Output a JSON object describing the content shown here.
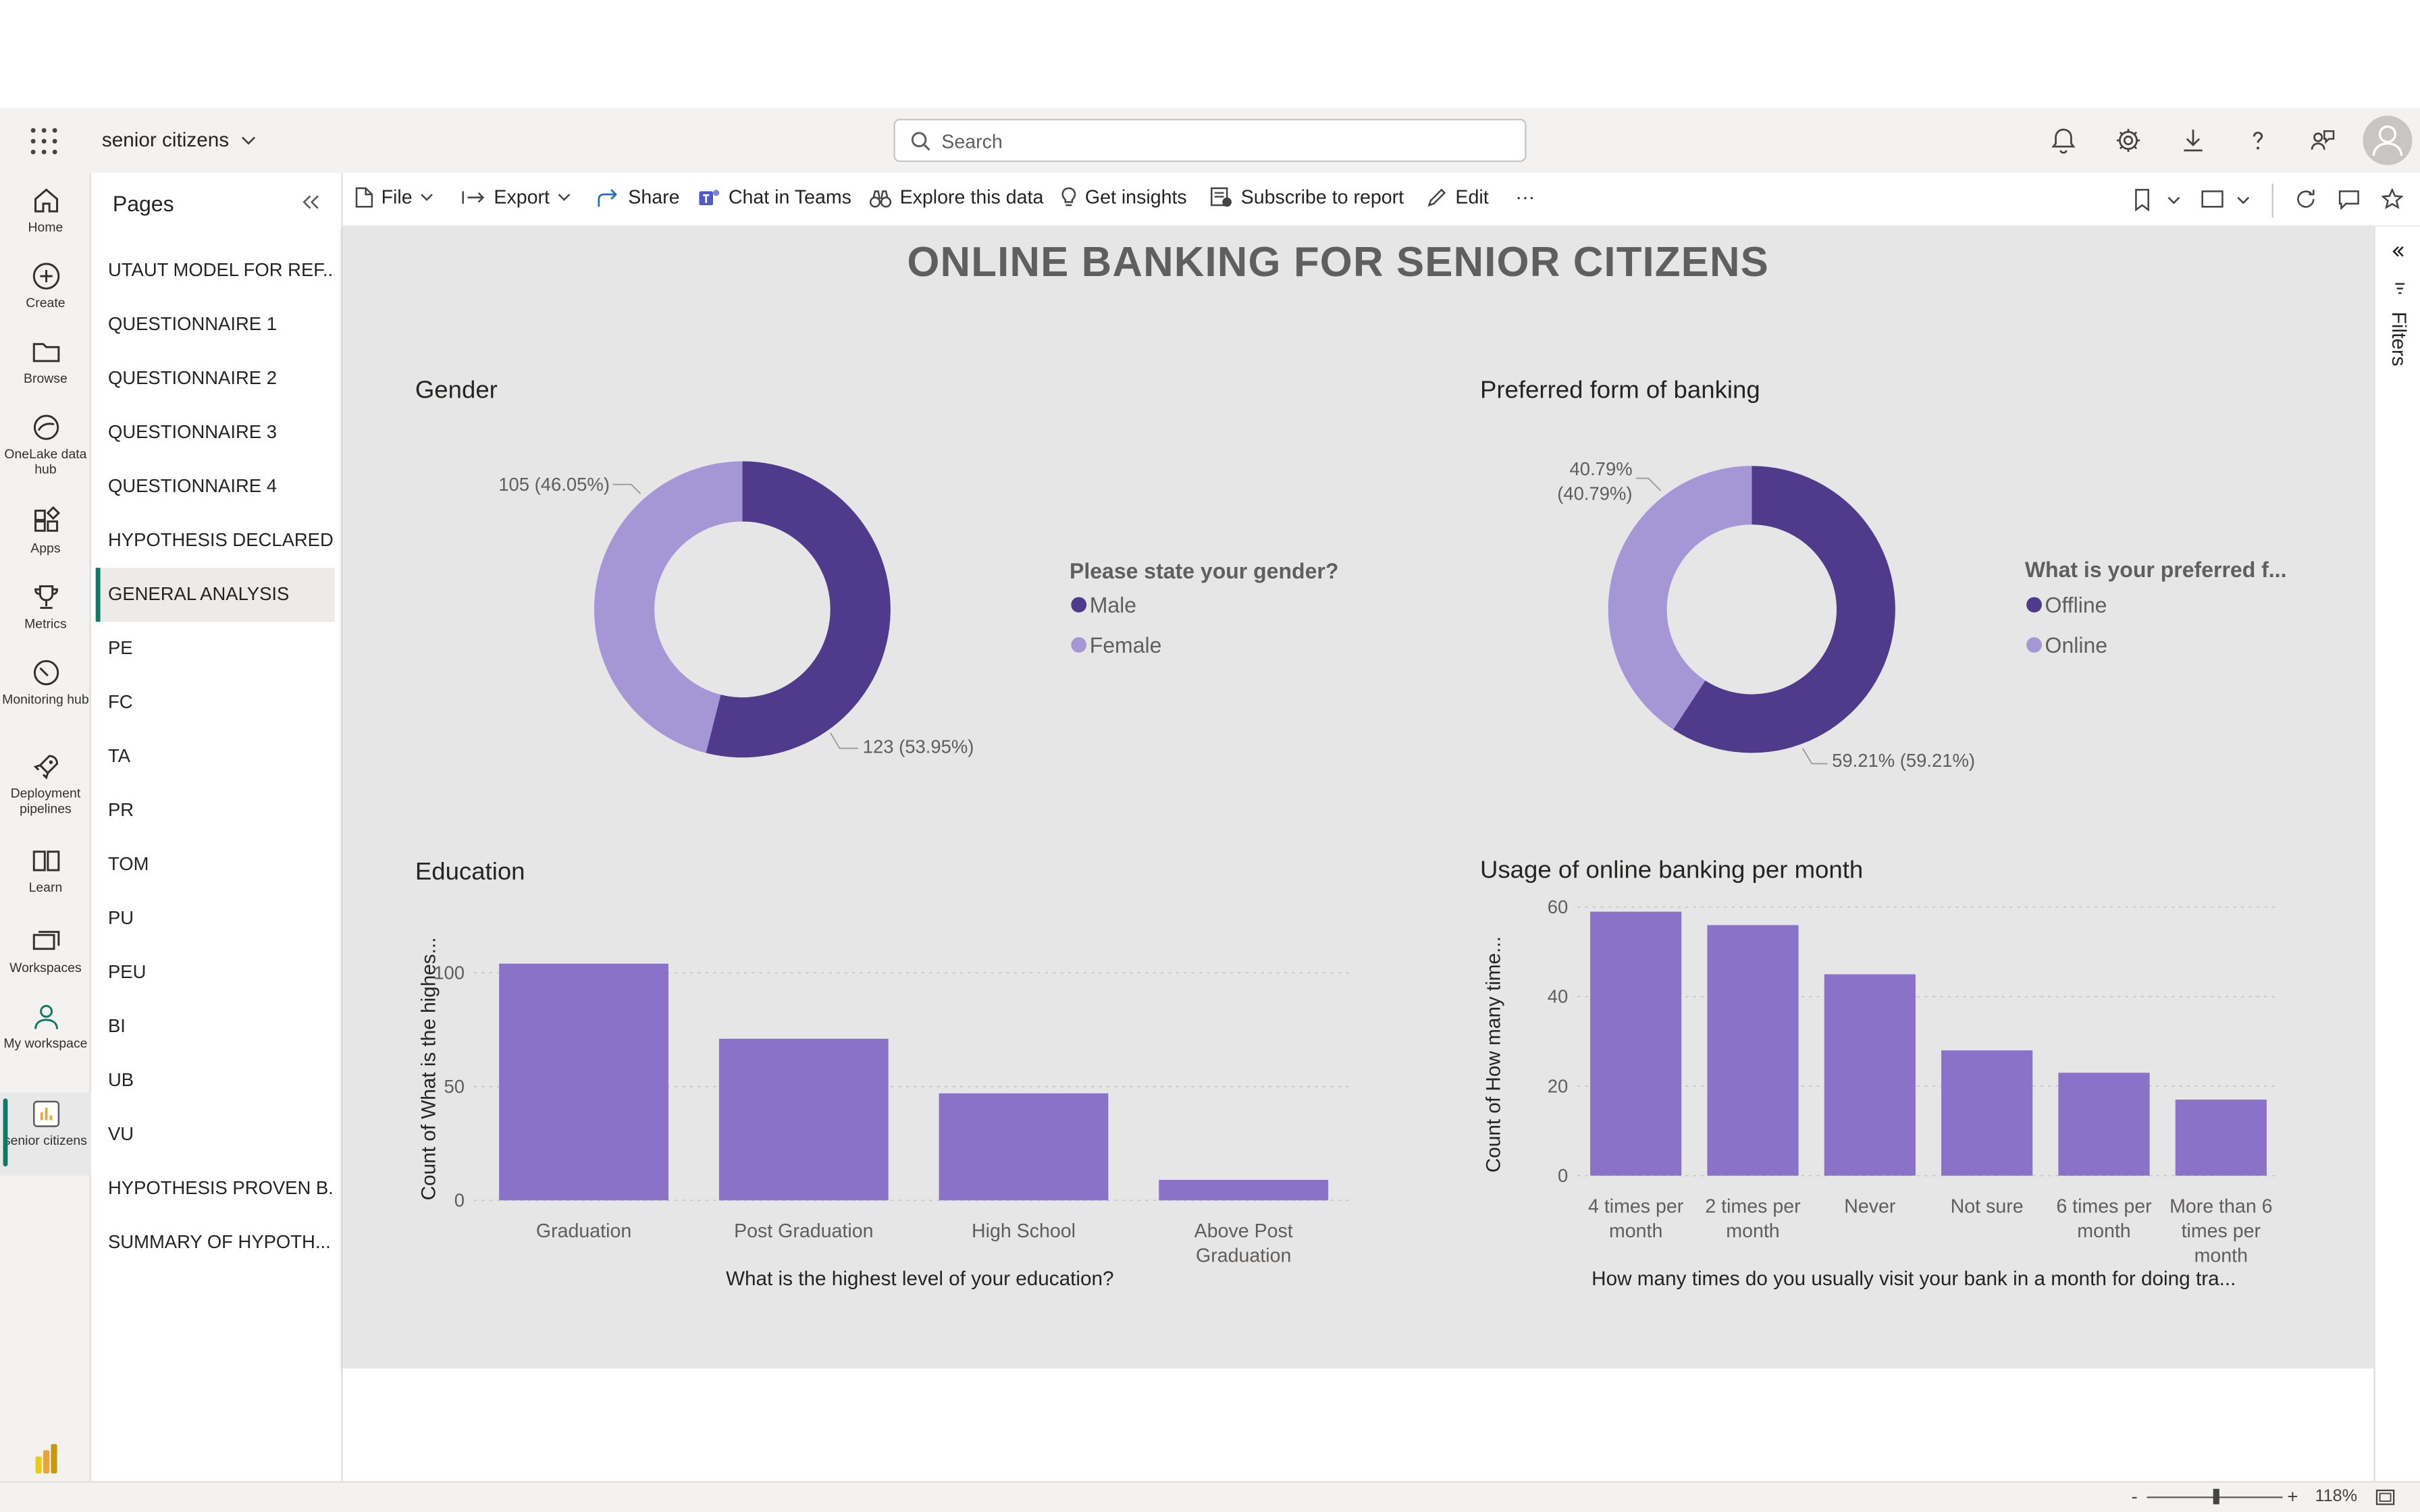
{
  "app": {
    "workspace_title": "senior citizens",
    "search_placeholder": "Search",
    "brand": "Power BI"
  },
  "nav": {
    "items": [
      {
        "label": "Home",
        "icon": "home-icon"
      },
      {
        "label": "Create",
        "icon": "create-icon"
      },
      {
        "label": "Browse",
        "icon": "browse-icon"
      },
      {
        "label": "OneLake data hub",
        "icon": "onelake-icon"
      },
      {
        "label": "Apps",
        "icon": "apps-icon"
      },
      {
        "label": "Metrics",
        "icon": "metrics-icon"
      },
      {
        "label": "Monitoring hub",
        "icon": "monitoring-icon"
      },
      {
        "label": "Deployment pipelines",
        "icon": "deployment-icon"
      },
      {
        "label": "Learn",
        "icon": "learn-icon"
      },
      {
        "label": "Workspaces",
        "icon": "workspaces-icon"
      },
      {
        "label": "My workspace",
        "icon": "my-workspace-icon"
      },
      {
        "label": "senior citizens",
        "icon": "report-icon"
      }
    ]
  },
  "pages": {
    "title": "Pages",
    "items": [
      "UTAUT MODEL FOR REF...",
      "QUESTIONNAIRE 1",
      "QUESTIONNAIRE 2",
      "QUESTIONNAIRE 3",
      "QUESTIONNAIRE 4",
      "HYPOTHESIS DECLARED...",
      "GENERAL ANALYSIS",
      "PE",
      "FC",
      "TA",
      "PR",
      "TOM",
      "PU",
      "PEU",
      "BI",
      "UB",
      "VU",
      "HYPOTHESIS PROVEN B...",
      "SUMMARY OF HYPOTH..."
    ],
    "active_index": 6
  },
  "toolbar": {
    "file": "File",
    "export": "Export",
    "share": "Share",
    "chat_in_teams": "Chat in Teams",
    "explore": "Explore this data",
    "insights": "Get insights",
    "subscribe": "Subscribe to report",
    "edit": "Edit",
    "more": "···"
  },
  "filters_label": "Filters",
  "status": {
    "zoom": "118%",
    "minus": "-",
    "plus": "+"
  },
  "report": {
    "title": "ONLINE BANKING FOR SENIOR CITIZENS",
    "gender": {
      "title": "Gender",
      "legend_title": "Please state your gender?",
      "legend": [
        "Male",
        "Female"
      ],
      "labels": [
        "123 (53.95%)",
        "105 (46.05%)"
      ]
    },
    "banking": {
      "title": "Preferred form of banking",
      "legend_title": "What is your preferred f...",
      "legend": [
        "Offline",
        "Online"
      ],
      "labels": [
        "59.21% (59.21%)",
        "40.79%",
        "(40.79%)"
      ]
    },
    "education": {
      "title": "Education",
      "ylabel": "Count of What is the highes...",
      "xlabel": "What is the highest level of your education?"
    },
    "usage": {
      "title": "Usage of online banking per month",
      "ylabel": "Count of How many time...",
      "xlabel": "How many times do you usually visit your bank in a month for doing tra..."
    }
  },
  "colors": {
    "dark": "#4f3a8c",
    "light": "#a596d6",
    "bar": "#8a72c8"
  },
  "chart_data": [
    {
      "type": "pie",
      "title": "Gender",
      "categories": [
        "Male",
        "Female"
      ],
      "values": [
        123,
        105
      ],
      "percent": [
        53.95,
        46.05
      ]
    },
    {
      "type": "pie",
      "title": "Preferred form of banking",
      "categories": [
        "Offline",
        "Online"
      ],
      "percent": [
        59.21,
        40.79
      ]
    },
    {
      "type": "bar",
      "title": "Education",
      "categories": [
        "Graduation",
        "Post Graduation",
        "High School",
        "Above Post Graduation"
      ],
      "values": [
        104,
        71,
        47,
        9
      ],
      "ylim": [
        0,
        120
      ],
      "yticks": [
        0,
        50,
        100
      ],
      "xlabel": "What is the highest level of your education?",
      "ylabel": "Count of What is the highes..."
    },
    {
      "type": "bar",
      "title": "Usage of online banking per month",
      "categories": [
        "4 times per month",
        "2 times per month",
        "Never",
        "Not sure",
        "6 times per month",
        "More than 6 times per month"
      ],
      "values": [
        59,
        56,
        45,
        28,
        23,
        17
      ],
      "ylim": [
        0,
        60
      ],
      "yticks": [
        0,
        20,
        40,
        60
      ],
      "xlabel": "How many times do you usually visit your bank in a month for doing tra...",
      "ylabel": "Count of How many time..."
    }
  ]
}
